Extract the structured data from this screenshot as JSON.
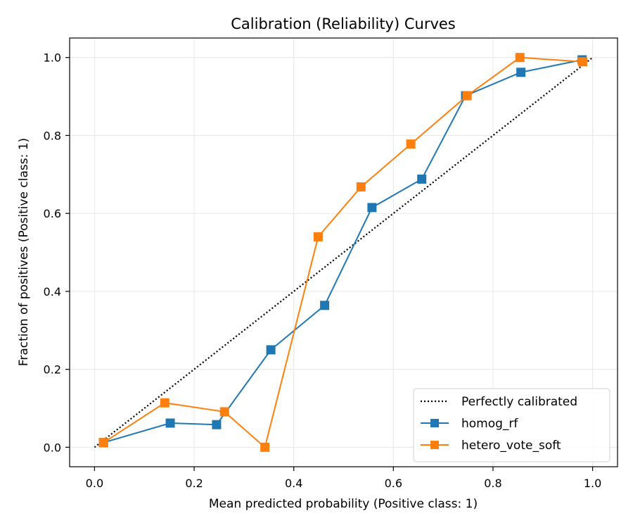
{
  "chart_data": {
    "type": "line",
    "title": "Calibration (Reliability) Curves",
    "xlabel": "Mean predicted probability (Positive class: 1)",
    "ylabel": "Fraction of positives (Positive class: 1)",
    "xlim": [
      -0.05,
      1.05
    ],
    "ylim": [
      -0.05,
      1.05
    ],
    "xticks": [
      0.0,
      0.2,
      0.4,
      0.6,
      0.8,
      1.0
    ],
    "yticks": [
      0.0,
      0.2,
      0.4,
      0.6,
      0.8,
      1.0
    ],
    "xtick_labels": [
      "0.0",
      "0.2",
      "0.4",
      "0.6",
      "0.8",
      "1.0"
    ],
    "ytick_labels": [
      "0.0",
      "0.2",
      "0.4",
      "0.6",
      "0.8",
      "1.0"
    ],
    "grid": true,
    "legend_position": "bottom-right",
    "series": [
      {
        "name": "Perfectly calibrated",
        "style": "dotted",
        "color": "#000000",
        "x": [
          0.0,
          1.0
        ],
        "y": [
          0.0,
          1.0
        ]
      },
      {
        "name": "homog_rf",
        "style": "solid",
        "marker": "square",
        "color": "#1f77b4",
        "x": [
          0.018,
          0.152,
          0.245,
          0.354,
          0.462,
          0.557,
          0.657,
          0.745,
          0.856,
          0.979
        ],
        "y": [
          0.012,
          0.062,
          0.058,
          0.25,
          0.364,
          0.615,
          0.688,
          0.902,
          0.962,
          0.994
        ]
      },
      {
        "name": "hetero_vote_soft",
        "style": "solid",
        "marker": "square",
        "color": "#ff7f0e",
        "x": [
          0.018,
          0.141,
          0.261,
          0.342,
          0.449,
          0.535,
          0.635,
          0.748,
          0.854,
          0.98
        ],
        "y": [
          0.012,
          0.114,
          0.091,
          0.0,
          0.54,
          0.668,
          0.778,
          0.902,
          1.0,
          0.989
        ]
      }
    ]
  }
}
